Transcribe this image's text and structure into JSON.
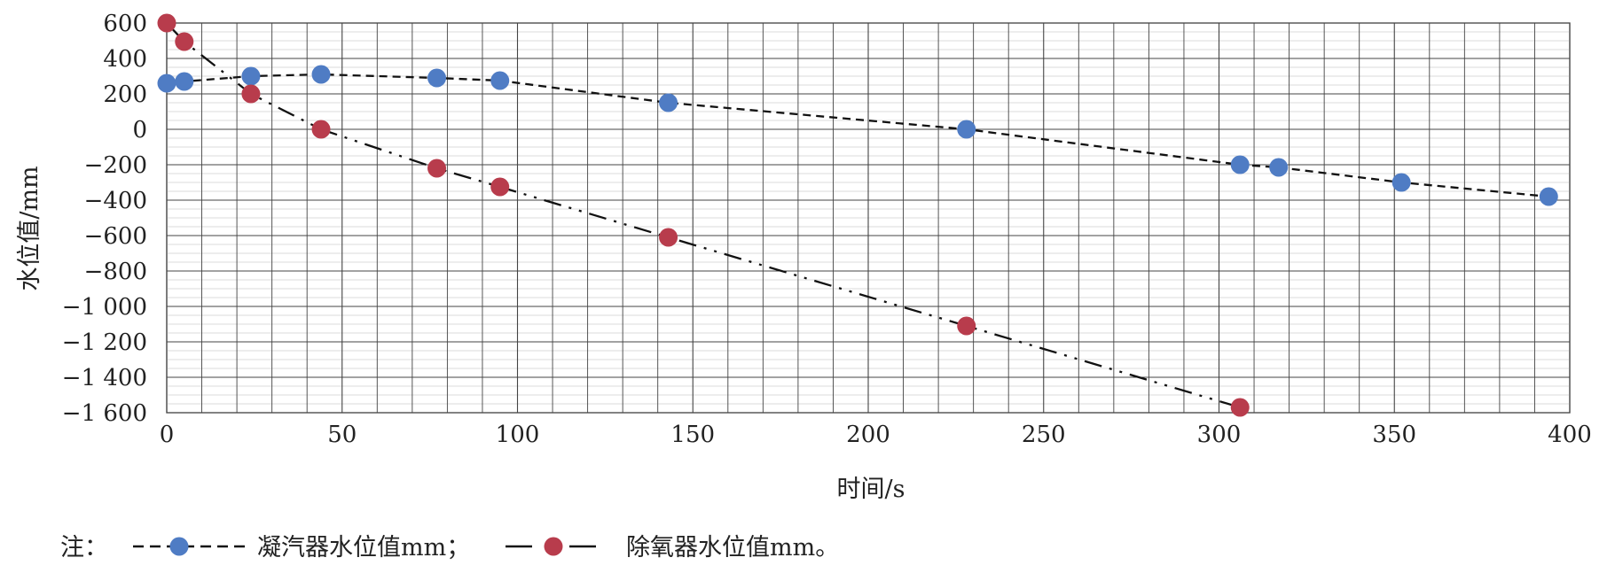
{
  "chart_data": {
    "type": "scatter",
    "xlabel": "时间/s",
    "ylabel": "水位值/mm",
    "xlim": [
      0,
      400
    ],
    "ylim": [
      -1600,
      600
    ],
    "x_ticks": [
      0,
      50,
      100,
      150,
      200,
      250,
      300,
      350,
      400
    ],
    "x_tick_labels": [
      "0",
      "50",
      "100",
      "150",
      "200",
      "250",
      "300",
      "350",
      "400"
    ],
    "y_ticks": [
      600,
      400,
      200,
      0,
      -200,
      -400,
      -600,
      -800,
      -1000,
      -1200,
      -1400,
      -1600
    ],
    "y_tick_labels": [
      "600",
      "400",
      "200",
      "0",
      "−200",
      "−400",
      "−600",
      "−800",
      "−1 000",
      "−1 200",
      "−1 400",
      "−1 600"
    ],
    "grid": true,
    "legend_prefix": "注：",
    "legend_position": "bottom",
    "series": [
      {
        "name": "凝汽器水位值mm；",
        "color": "#4f7cc4",
        "line_style": "dashed",
        "x": [
          0,
          5,
          24,
          44,
          77,
          95,
          143,
          228,
          306,
          317,
          352,
          394
        ],
        "y": [
          260,
          270,
          300,
          310,
          290,
          275,
          150,
          0,
          -200,
          -215,
          -300,
          -380
        ]
      },
      {
        "name": "除氧器水位值mm。",
        "color": "#b83c4c",
        "line_style": "dash-dot-dot",
        "x": [
          0,
          5,
          24,
          44,
          77,
          95,
          143,
          228,
          306
        ],
        "y": [
          600,
          495,
          200,
          0,
          -220,
          -325,
          -610,
          -1110,
          -1570
        ]
      }
    ]
  }
}
